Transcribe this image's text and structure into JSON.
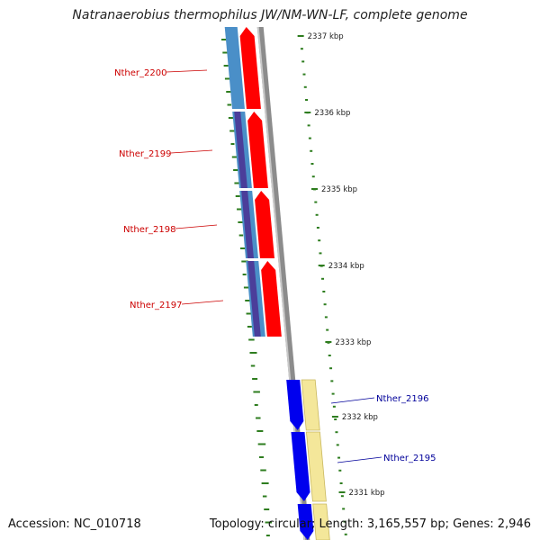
{
  "title": "Natranaerobius thermophilus JW/NM-WN-LF, complete genome",
  "footer": {
    "accession": "Accession: NC_010718",
    "topology": "Topology: circular; Length: 3,165,557 bp; Genes: 2,946"
  },
  "colors": {
    "forward_cds": "#ff0000",
    "forward_gene": "#4a8fc8",
    "forward_gc": "#4b3e9a",
    "reverse_cds": "#0000ee",
    "reverse_gene": "#f4e79a",
    "backbone": "#8c8c8c",
    "ticks": "#2e7d1f",
    "forward_label": "#cc0000",
    "reverse_label": "#00009a"
  },
  "ruler": [
    "2337 kbp",
    "2336 kbp",
    "2335 kbp",
    "2334 kbp",
    "2333 kbp",
    "2332 kbp",
    "2331 kbp"
  ],
  "forward_genes": [
    {
      "label": "Nther_2200"
    },
    {
      "label": "Nther_2199"
    },
    {
      "label": "Nther_2198"
    },
    {
      "label": "Nther_2197"
    }
  ],
  "reverse_genes": [
    {
      "label": "Nther_2196"
    },
    {
      "label": "Nther_2195"
    }
  ]
}
